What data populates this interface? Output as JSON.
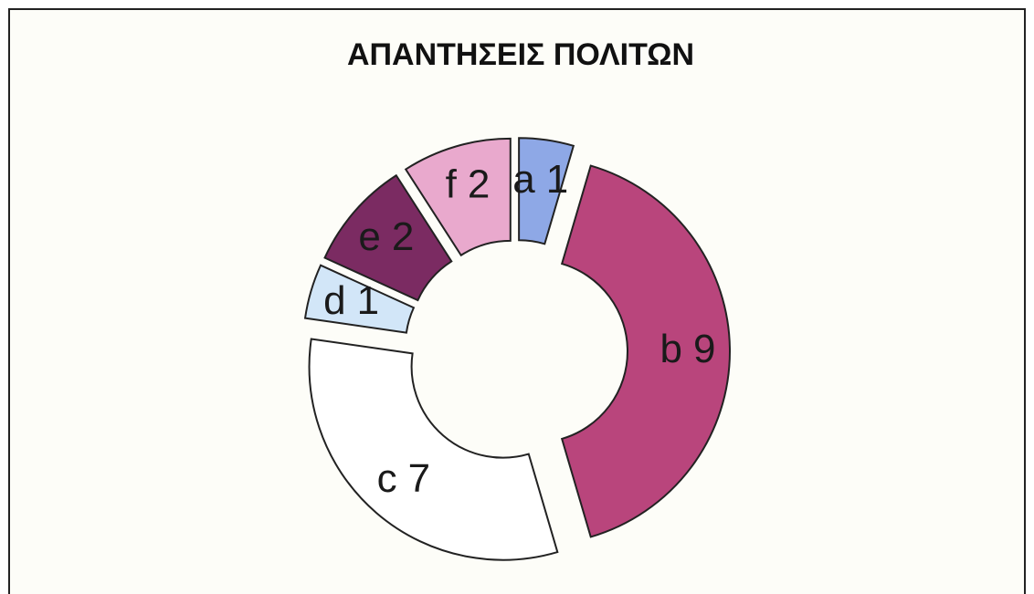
{
  "chart_data": {
    "type": "donut",
    "title": "ΑΠΑΝΤΗΣΕΙΣ ΠΟΛΙΤΩΝ",
    "categories": [
      "a",
      "b",
      "c",
      "d",
      "e",
      "f"
    ],
    "values": [
      1,
      9,
      7,
      1,
      2,
      2
    ],
    "colors": [
      "#8ea8e6",
      "#b9457c",
      "#ffffff",
      "#d2e6f8",
      "#7b2b62",
      "#e9a9cd"
    ]
  }
}
